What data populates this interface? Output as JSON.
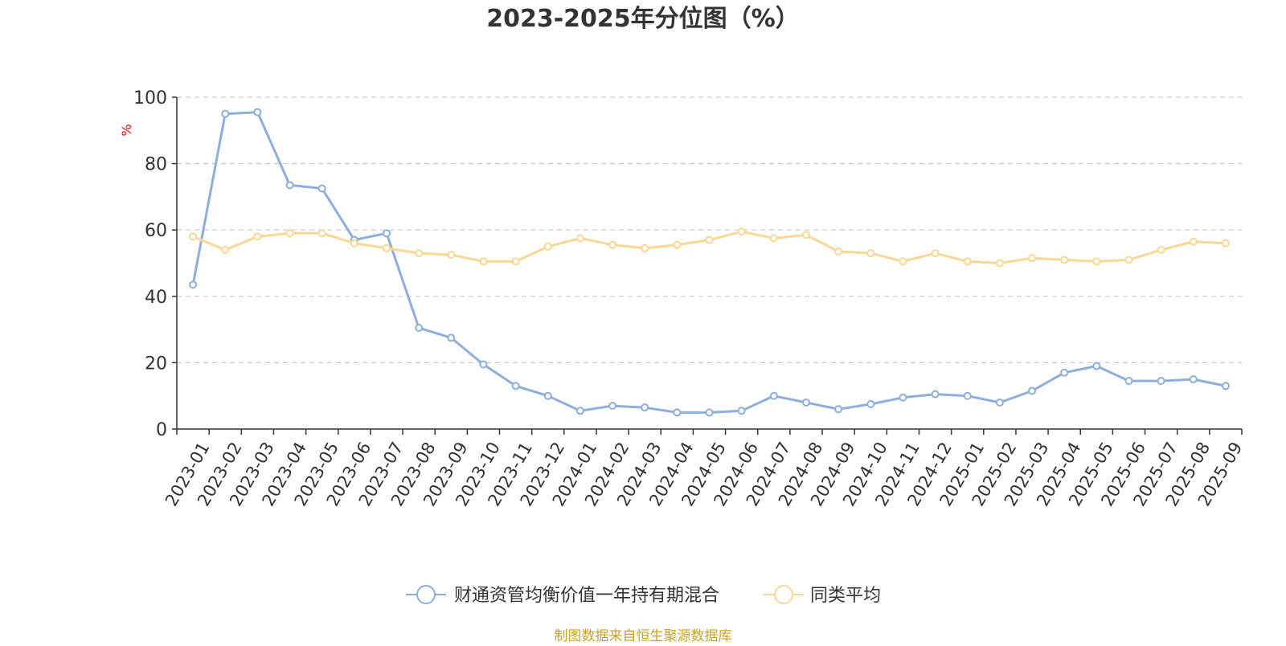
{
  "chart_data": {
    "type": "line",
    "title": "2023-2025年分位图（%）",
    "ylabel": "%",
    "xlabel": "",
    "ylim": [
      0,
      100
    ],
    "yticks": [
      0,
      20,
      40,
      60,
      80,
      100
    ],
    "grid": true,
    "legend_position": "bottom",
    "categories": [
      "2023-01",
      "2023-02",
      "2023-03",
      "2023-04",
      "2023-05",
      "2023-06",
      "2023-07",
      "2023-08",
      "2023-09",
      "2023-10",
      "2023-11",
      "2023-12",
      "2024-01",
      "2024-02",
      "2024-03",
      "2024-04",
      "2024-05",
      "2024-06",
      "2024-07",
      "2024-08",
      "2024-09",
      "2024-10",
      "2024-11",
      "2024-12",
      "2025-01",
      "2025-02",
      "2025-03",
      "2025-04",
      "2025-05",
      "2025-06",
      "2025-07",
      "2025-08",
      "2025-09"
    ],
    "series": [
      {
        "name": "财通资管均衡价值一年持有期混合",
        "color": "#8eaedc",
        "values": [
          43.5,
          95.0,
          95.5,
          73.5,
          72.5,
          57.0,
          59.0,
          30.5,
          27.5,
          19.5,
          13.0,
          10.0,
          5.5,
          7.0,
          6.5,
          5.0,
          5.0,
          5.5,
          10.0,
          8.0,
          6.0,
          7.5,
          9.5,
          10.5,
          10.0,
          8.0,
          11.5,
          17.0,
          19.0,
          14.5,
          14.5,
          15.0,
          13.0
        ]
      },
      {
        "name": "同类平均",
        "color": "#fad794",
        "values": [
          58.0,
          54.0,
          58.0,
          59.0,
          59.0,
          56.0,
          54.5,
          53.0,
          52.5,
          50.5,
          50.5,
          55.0,
          57.5,
          55.5,
          54.5,
          55.5,
          57.0,
          59.5,
          57.5,
          58.5,
          53.5,
          53.0,
          50.5,
          53.0,
          50.5,
          50.0,
          51.5,
          51.0,
          50.5,
          51.0,
          54.0,
          56.5,
          56.0
        ]
      }
    ],
    "source_note": "制图数据来自恒生聚源数据库",
    "colors": {
      "title": "#333333",
      "axis": "#333333",
      "tick_label": "#333333",
      "grid": "#cccccc",
      "ylabel": "#ff0000",
      "source_note": "#c9a227"
    }
  }
}
